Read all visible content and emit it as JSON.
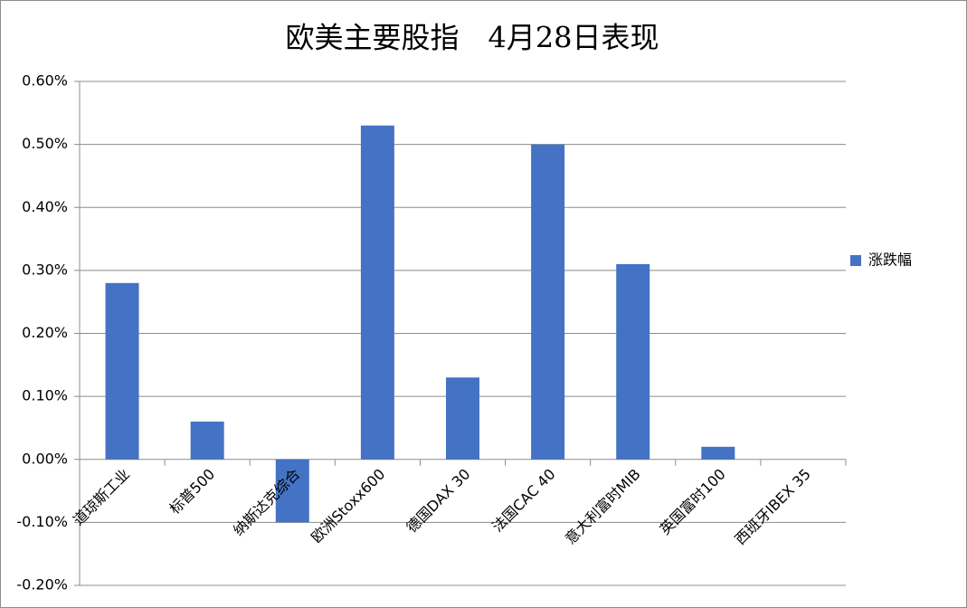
{
  "chart_data": {
    "type": "bar",
    "title": "欧美主要股指　4月28日表现",
    "categories": [
      "道琼斯工业",
      "标普500",
      "纳斯达克综合",
      "欧洲Stoxx600",
      "德国DAX 30",
      "法国CAC 40",
      "意大利富时MIB",
      "英国富时100",
      "西班牙IBEX 35"
    ],
    "series": [
      {
        "name": "涨跌幅",
        "color": "#4472c4",
        "values": [
          0.28,
          0.06,
          -0.1,
          0.53,
          0.13,
          0.5,
          0.31,
          0.02,
          0
        ]
      }
    ],
    "ylim": [
      -0.2,
      0.6
    ],
    "yticks": [
      {
        "value": -0.2,
        "label": "-0.20%"
      },
      {
        "value": -0.1,
        "label": "-0.10%"
      },
      {
        "value": 0,
        "label": "0.00%"
      },
      {
        "value": 0.1,
        "label": "0.10%"
      },
      {
        "value": 0.2,
        "label": "0.20%"
      },
      {
        "value": 0.3,
        "label": "0.30%"
      },
      {
        "value": 0.4,
        "label": "0.40%"
      },
      {
        "value": 0.5,
        "label": "0.50%"
      },
      {
        "value": 0.6,
        "label": "0.60%"
      }
    ],
    "grid": true,
    "legend": "right"
  }
}
